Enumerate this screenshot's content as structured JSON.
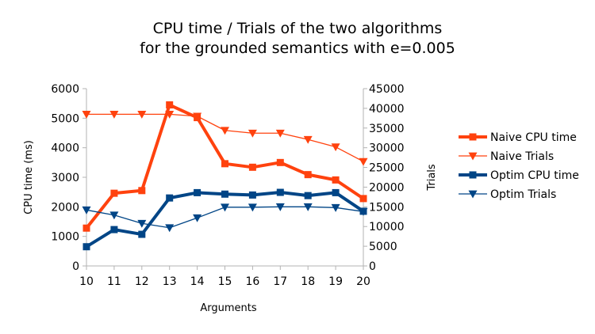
{
  "chart_data": {
    "type": "line",
    "title_lines": [
      "CPU time / Trials of the two algorithms",
      "for the grounded semantics with e=0.005"
    ],
    "xlabel": "Arguments",
    "ylabel_left": "CPU time (ms)",
    "ylabel_right": "Trials",
    "x": [
      10,
      11,
      12,
      13,
      14,
      15,
      16,
      17,
      18,
      19,
      20
    ],
    "xlim": [
      10,
      20
    ],
    "ylim_left": [
      0,
      6000
    ],
    "yticks_left": [
      0,
      1000,
      2000,
      3000,
      4000,
      5000,
      6000
    ],
    "ylim_right": [
      0,
      45000
    ],
    "yticks_right": [
      0,
      5000,
      10000,
      15000,
      20000,
      25000,
      30000,
      35000,
      40000,
      45000
    ],
    "legend_position": "right",
    "grid": false,
    "series": [
      {
        "name": "Naive CPU time",
        "axis": "left",
        "color": "#ff420e",
        "marker": "square",
        "width": "thick",
        "values": [
          1280,
          2460,
          2550,
          5450,
          5020,
          3460,
          3340,
          3500,
          3090,
          2910,
          2280
        ]
      },
      {
        "name": "Naive Trials",
        "axis": "right",
        "color": "#ff420e",
        "marker": "triangle-down",
        "width": "thin",
        "values": [
          38500,
          38500,
          38500,
          38500,
          38000,
          34400,
          33700,
          33700,
          32100,
          30200,
          26500
        ]
      },
      {
        "name": "Optim CPU time",
        "axis": "left",
        "color": "#004586",
        "marker": "square",
        "width": "thick",
        "values": [
          650,
          1230,
          1070,
          2300,
          2480,
          2430,
          2400,
          2490,
          2380,
          2480,
          1850
        ]
      },
      {
        "name": "Optim Trials",
        "axis": "right",
        "color": "#004586",
        "marker": "triangle-down",
        "width": "thin",
        "values": [
          14200,
          12900,
          10800,
          9700,
          12200,
          14900,
          14900,
          15000,
          15000,
          14800,
          13800
        ]
      }
    ]
  }
}
